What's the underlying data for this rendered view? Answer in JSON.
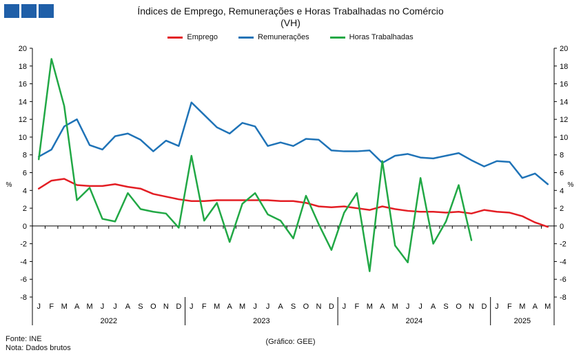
{
  "header": {
    "title_line1": "Índices de Emprego, Remunerações e Horas Trabalhadas no Comércio",
    "title_line2": "(VH)"
  },
  "footer": {
    "source": "Fonte: INE",
    "note": "Nota: Dados brutos",
    "credit": "(Gráfico: GEE)"
  },
  "colors": {
    "logo": "#1f5fa8"
  },
  "chart_data": {
    "type": "line",
    "ylabel_left": "%",
    "ylabel_right": "%",
    "ylim": [
      -8,
      20
    ],
    "yticks": [
      -8,
      -6,
      -4,
      -2,
      0,
      2,
      4,
      6,
      8,
      10,
      12,
      14,
      16,
      18,
      20
    ],
    "grid": false,
    "legend_position": "top-center",
    "categories": [
      "J",
      "F",
      "M",
      "A",
      "M",
      "J",
      "J",
      "A",
      "S",
      "O",
      "N",
      "D",
      "J",
      "F",
      "M",
      "A",
      "M",
      "J",
      "J",
      "A",
      "S",
      "O",
      "N",
      "D",
      "J",
      "F",
      "M",
      "A",
      "M",
      "J",
      "J",
      "A",
      "S",
      "O",
      "N",
      "D",
      "J",
      "F",
      "M",
      "A",
      "M"
    ],
    "years": [
      {
        "label": "2022",
        "start": 0,
        "count": 12
      },
      {
        "label": "2023",
        "start": 12,
        "count": 12
      },
      {
        "label": "2024",
        "start": 24,
        "count": 12
      },
      {
        "label": "2025",
        "start": 36,
        "count": 5
      }
    ],
    "series": [
      {
        "name": "Emprego",
        "color": "#e31e24",
        "values": [
          4.2,
          5.1,
          5.3,
          4.6,
          4.5,
          4.5,
          4.7,
          4.4,
          4.2,
          3.6,
          3.3,
          3.0,
          2.8,
          2.8,
          2.9,
          2.9,
          2.9,
          2.9,
          2.9,
          2.8,
          2.8,
          2.6,
          2.2,
          2.1,
          2.2,
          2.0,
          1.8,
          2.2,
          1.9,
          1.7,
          1.6,
          1.6,
          1.5,
          1.6,
          1.4,
          1.8,
          1.6,
          1.5,
          1.1,
          0.4,
          -0.1
        ]
      },
      {
        "name": "Remunerações",
        "color": "#1f73b7",
        "values": [
          7.8,
          8.6,
          11.2,
          12.0,
          9.1,
          8.6,
          10.1,
          10.4,
          9.7,
          8.4,
          9.6,
          9.0,
          13.9,
          12.5,
          11.1,
          10.4,
          11.6,
          11.2,
          9.0,
          9.4,
          9.0,
          9.8,
          9.7,
          8.5,
          8.4,
          8.4,
          8.5,
          7.1,
          7.9,
          8.1,
          7.7,
          7.6,
          7.9,
          8.2,
          7.4,
          6.7,
          7.3,
          7.2,
          5.4,
          5.9,
          4.7
        ]
      },
      {
        "name": "Horas Trabalhadas",
        "color": "#21a845",
        "values": [
          7.5,
          18.8,
          13.5,
          2.9,
          4.3,
          0.8,
          0.5,
          3.7,
          1.9,
          1.6,
          1.4,
          -0.2,
          7.9,
          0.6,
          2.6,
          -1.8,
          2.5,
          3.7,
          1.3,
          0.6,
          -1.4,
          3.4,
          0.2,
          -2.7,
          1.5,
          3.7,
          -5.1,
          7.3,
          -2.2,
          -4.1,
          5.4,
          -2.0,
          0.5,
          4.6,
          -1.6,
          null,
          null,
          null,
          null,
          null,
          null
        ]
      }
    ]
  }
}
